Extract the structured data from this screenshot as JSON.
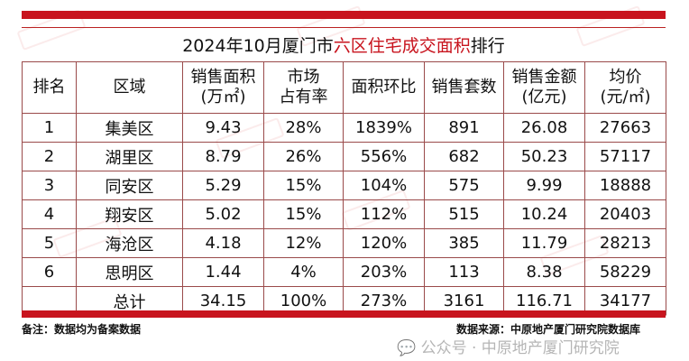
{
  "title": {
    "prefix": "2024年10月厦门市",
    "highlight": "六区住宅成交面积",
    "suffix": "排行"
  },
  "colors": {
    "accent": "#c8141e",
    "border": "#9a4a4a"
  },
  "table": {
    "headers": [
      "排名",
      "区域",
      "销售面积\n(万㎡)",
      "市场\n占有率",
      "面积环比",
      "销售套数",
      "销售金额\n(亿元)",
      "均价\n(元/㎡)"
    ],
    "rows": [
      [
        "1",
        "集美区",
        "9.43",
        "28%",
        "1839%",
        "891",
        "26.08",
        "27663"
      ],
      [
        "2",
        "湖里区",
        "8.79",
        "26%",
        "556%",
        "682",
        "50.23",
        "57117"
      ],
      [
        "3",
        "同安区",
        "5.29",
        "15%",
        "104%",
        "575",
        "9.99",
        "18888"
      ],
      [
        "4",
        "翔安区",
        "5.02",
        "15%",
        "112%",
        "515",
        "10.24",
        "20403"
      ],
      [
        "5",
        "海沧区",
        "4.18",
        "12%",
        "120%",
        "385",
        "11.79",
        "28213"
      ],
      [
        "6",
        "思明区",
        "1.44",
        "4%",
        "203%",
        "113",
        "8.38",
        "58229"
      ],
      [
        "",
        "总计",
        "34.15",
        "100%",
        "273%",
        "3161",
        "116.71",
        "34177"
      ]
    ]
  },
  "footer": {
    "note": "备注：数据均为备案数据",
    "source": "数据来源：中原地产厦门研究院数据库",
    "watermark": "公众号 · 中原地产厦门研究院"
  },
  "logo_watermark": "中原地产"
}
